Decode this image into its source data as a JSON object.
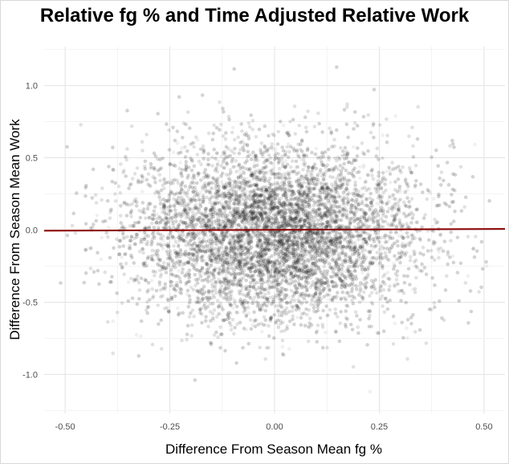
{
  "chart_data": {
    "type": "scatter",
    "title": "Relative fg % and Time Adjusted Relative Work",
    "xlabel": "Difference From Season Mean fg %",
    "ylabel": "Difference From Season Mean Work",
    "xlim": [
      -0.55,
      0.55
    ],
    "ylim": [
      -1.27,
      1.27
    ],
    "x_ticks": [
      -0.5,
      -0.25,
      0,
      0.25,
      0.5
    ],
    "x_tick_labels": [
      "-0.50",
      "-0.25",
      "0.00",
      "0.25",
      "0.50"
    ],
    "y_ticks": [
      -1.0,
      -0.5,
      0.0,
      0.5,
      1.0
    ],
    "y_tick_labels": [
      "-1.0",
      "-0.5",
      "0.0",
      "0.5",
      "1.0"
    ],
    "grid": true,
    "point_color": "#000000",
    "point_alpha": 0.06,
    "point_distribution": {
      "x_mean": 0.0,
      "x_sd": 0.17,
      "y_mean": -0.02,
      "y_sd": 0.3,
      "count": 14000
    },
    "series": [
      {
        "type": "line",
        "color": "#8b0000",
        "x": [
          -0.55,
          0.55
        ],
        "y": [
          -0.005,
          0.008
        ]
      }
    ]
  }
}
